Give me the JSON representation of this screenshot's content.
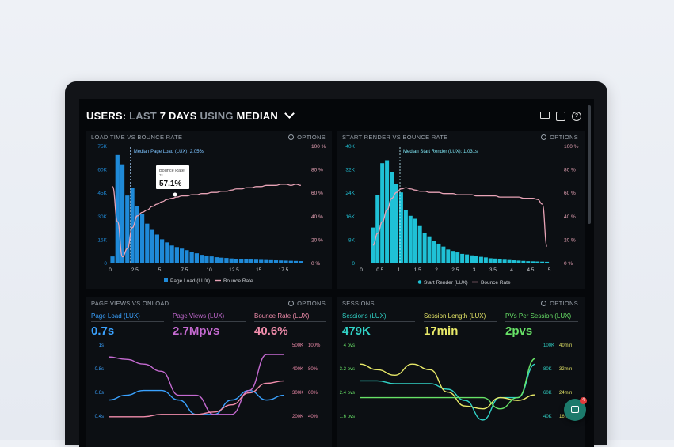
{
  "header": {
    "prefix": "USERS:",
    "part1": "LAST",
    "part2": "7 DAYS",
    "part3": "USING",
    "part4": "MEDIAN"
  },
  "header_icons": [
    "monitor-icon",
    "share-icon",
    "help-icon"
  ],
  "options_label": "OPTIONS",
  "panels": {
    "load_time": {
      "title": "LOAD TIME VS BOUNCE RATE",
      "median_label": "Median Page Load (LUX): 2.056s",
      "tooltip_label": "Bounce Rate",
      "tooltip_sub": "7s",
      "tooltip_value": "57.1%",
      "y_left": [
        "75K",
        "60K",
        "45K",
        "30K",
        "15K",
        "0"
      ],
      "y_right": [
        "100 %",
        "80 %",
        "60 %",
        "40 %",
        "20 %",
        "0 %"
      ],
      "x_ticks": [
        "0",
        "2.5",
        "5",
        "7.5",
        "10",
        "12.5",
        "15",
        "17.5"
      ],
      "legend_bar": "Page Load (LUX)",
      "legend_line": "Bounce Rate"
    },
    "start_render": {
      "title": "START RENDER VS BOUNCE RATE",
      "median_label": "Median Start Render (LUX): 1.031s",
      "y_left": [
        "40K",
        "32K",
        "24K",
        "16K",
        "8K",
        "0"
      ],
      "y_right": [
        "100 %",
        "80 %",
        "60 %",
        "40 %",
        "20 %",
        "0 %"
      ],
      "x_ticks": [
        "0",
        "0.5",
        "1",
        "1.5",
        "2",
        "2.5",
        "3",
        "3.5",
        "4",
        "4.5",
        "5"
      ],
      "legend_bar": "Start Render (LUX)",
      "legend_line": "Bounce Rate"
    },
    "page_views": {
      "title": "PAGE VIEWS VS ONLOAD",
      "metrics": [
        {
          "label": "Page Load (LUX)",
          "value": "0.7s"
        },
        {
          "label": "Page Views (LUX)",
          "value": "2.7Mpvs"
        },
        {
          "label": "Bounce Rate (LUX)",
          "value": "40.6%"
        }
      ],
      "y_left": [
        "1s",
        "0.8s",
        "0.6s",
        "0.4s"
      ],
      "y_right_a": [
        "500K",
        "400K",
        "300K",
        "200K"
      ],
      "y_right_b": [
        "100%",
        "80%",
        "60%",
        "40%"
      ]
    },
    "sessions": {
      "title": "SESSIONS",
      "metrics": [
        {
          "label": "Sessions (LUX)",
          "value": "479K"
        },
        {
          "label": "Session Length (LUX)",
          "value": "17min"
        },
        {
          "label": "PVs Per Session (LUX)",
          "value": "2pvs"
        }
      ],
      "y_left": [
        "4 pvs",
        "3.2 pvs",
        "2.4 pvs",
        "1.6 pvs"
      ],
      "y_right_a": [
        "100K",
        "80K",
        "60K",
        "40K"
      ],
      "y_right_b": [
        "40min",
        "32min",
        "24min",
        "16min"
      ]
    }
  },
  "chart_data": [
    {
      "type": "bar",
      "title": "LOAD TIME VS BOUNCE RATE",
      "x": [
        0,
        0.5,
        1,
        1.5,
        2,
        2.5,
        3,
        3.5,
        4,
        4.5,
        5,
        5.5,
        6,
        6.5,
        7,
        7.5,
        8,
        8.5,
        9,
        9.5,
        10,
        10.5,
        11,
        11.5,
        12,
        12.5,
        13,
        13.5,
        14,
        14.5,
        15,
        15.5,
        16,
        16.5,
        17,
        17.5,
        18,
        18.5,
        19
      ],
      "series": [
        {
          "name": "Page Load (LUX)",
          "values": [
            4000,
            69000,
            63000,
            43000,
            48000,
            36000,
            31000,
            25000,
            21000,
            18000,
            15000,
            13000,
            11000,
            10000,
            9000,
            8000,
            7000,
            6000,
            5000,
            4500,
            4000,
            3500,
            3200,
            3000,
            2700,
            2500,
            2300,
            2100,
            2000,
            1900,
            1800,
            1700,
            1600,
            1500,
            1400,
            1300,
            1200,
            1100,
            1000
          ]
        },
        {
          "name": "Bounce Rate",
          "values": [
            65,
            35,
            5,
            12,
            30,
            40,
            43,
            45,
            48,
            50,
            52,
            54,
            55,
            56,
            57,
            57,
            58,
            58,
            59,
            59,
            60,
            60,
            61,
            61,
            62,
            63,
            63,
            64,
            64,
            65,
            65,
            66,
            66,
            66,
            67,
            67,
            66,
            67,
            66
          ]
        }
      ]
    },
    {
      "type": "bar",
      "title": "START RENDER VS BOUNCE RATE",
      "x": [
        0.25,
        0.375,
        0.5,
        0.625,
        0.75,
        0.875,
        1,
        1.125,
        1.25,
        1.375,
        1.5,
        1.625,
        1.75,
        1.875,
        2,
        2.125,
        2.25,
        2.375,
        2.5,
        2.625,
        2.75,
        2.875,
        3,
        3.125,
        3.25,
        3.375,
        3.5,
        3.625,
        3.75,
        3.875,
        4,
        4.125,
        4.25,
        4.375,
        4.5,
        4.625,
        4.75,
        4.875
      ],
      "series": [
        {
          "name": "Start Render (LUX)",
          "values": [
            12000,
            23000,
            34000,
            35000,
            31000,
            27000,
            24000,
            18000,
            16000,
            15000,
            12500,
            10000,
            9000,
            7500,
            6500,
            5500,
            4500,
            4000,
            3500,
            3000,
            2800,
            2500,
            2200,
            2000,
            1800,
            1500,
            1400,
            1200,
            1000,
            900,
            800,
            700,
            600,
            500,
            450,
            400,
            350,
            300
          ]
        },
        {
          "name": "Bounce Rate",
          "values": [
            15,
            25,
            35,
            45,
            55,
            60,
            63,
            64,
            63,
            62,
            61,
            61,
            60,
            60,
            60,
            59,
            59,
            59,
            58,
            58,
            58,
            58,
            57,
            57,
            57,
            57,
            57,
            56,
            56,
            56,
            56,
            56,
            55,
            55,
            55,
            54,
            50,
            14
          ]
        }
      ]
    },
    {
      "type": "line",
      "title": "PAGE VIEWS VS ONLOAD",
      "x": [
        0,
        1,
        2,
        3,
        4,
        5,
        6,
        7,
        8,
        9,
        10
      ],
      "series": [
        {
          "name": "Page Load (LUX)",
          "values": [
            0.56,
            0.6,
            0.64,
            0.64,
            0.56,
            0.44,
            0.44,
            0.56,
            0.64,
            0.56,
            0.6
          ]
        },
        {
          "name": "Page Views (LUX)",
          "values": [
            0.92,
            0.9,
            0.86,
            0.8,
            0.6,
            0.6,
            0.44,
            0.44,
            0.64,
            0.94,
            0.94
          ]
        },
        {
          "name": "Bounce Rate (LUX)",
          "values": [
            0.42,
            0.42,
            0.42,
            0.44,
            0.44,
            0.44,
            0.46,
            0.52,
            0.62,
            0.7,
            0.72
          ]
        }
      ]
    },
    {
      "type": "line",
      "title": "SESSIONS",
      "x": [
        0,
        1,
        2,
        3,
        4,
        5,
        6,
        7,
        8,
        9,
        10
      ],
      "series": [
        {
          "name": "Sessions (LUX)",
          "values": [
            2.8,
            2.8,
            2.7,
            2.7,
            2.7,
            2.5,
            2.1,
            1.4,
            2.2,
            2.2,
            3.4
          ]
        },
        {
          "name": "Session Length (LUX)",
          "values": [
            3.4,
            3.2,
            3.0,
            3.4,
            3.2,
            2.4,
            1.9,
            1.8,
            2.2,
            2.1,
            2.3
          ]
        },
        {
          "name": "PVs Per Session (LUX)",
          "values": [
            2.2,
            2.2,
            2.2,
            2.2,
            2.2,
            2.2,
            2.2,
            2.2,
            1.8,
            2.2,
            3.6
          ]
        }
      ]
    }
  ],
  "colors": {
    "bar_blue": "#1f8ad8",
    "bar_cyan": "#1fc1d6",
    "line_pink": "#e8a3b6",
    "metric_blue": "#3aa2ff",
    "metric_purple": "#c56ad1",
    "metric_pink": "#f08cab",
    "metric_cyan": "#31d3c7",
    "metric_yellow": "#e8e968",
    "metric_green": "#68e267"
  },
  "chat_badge": "4"
}
